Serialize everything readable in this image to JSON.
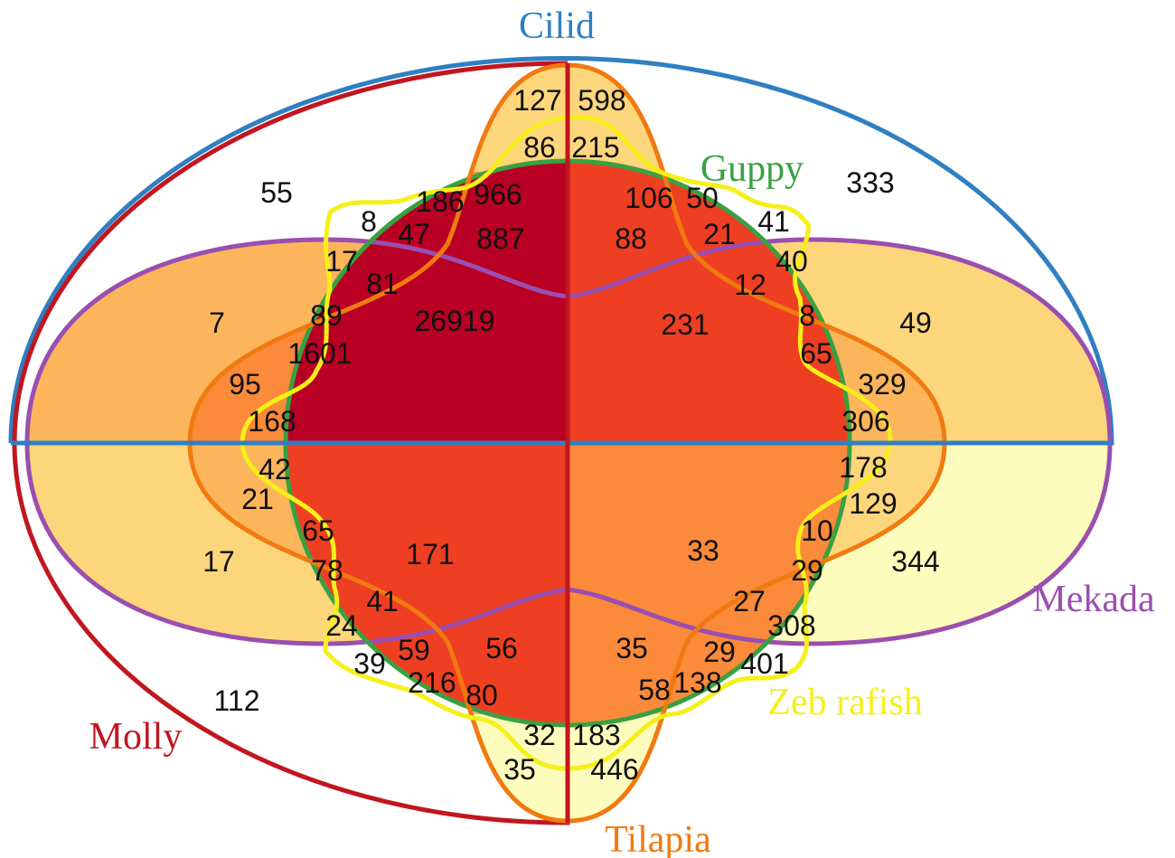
{
  "diagram": {
    "type": "venn",
    "sets": [
      {
        "id": "cilid",
        "label": "Cilid",
        "color": "#2f7fc1"
      },
      {
        "id": "molly",
        "label": "Molly",
        "color": "#c1161f"
      },
      {
        "id": "guppy",
        "label": "Guppy",
        "color": "#3aa042"
      },
      {
        "id": "mekada",
        "label": "Mekada",
        "color": "#9a4fb0"
      },
      {
        "id": "tilapia",
        "label": "Tilapia",
        "color": "#f07a10"
      },
      {
        "id": "zebrafish",
        "label": "Zeb rafish",
        "color": "#f6ef1a"
      }
    ],
    "region_colors": [
      "#b90024",
      "#ef3f22",
      "#fb8a3a",
      "#fcb55a",
      "#fdd67c",
      "#fefcbc"
    ],
    "values": [
      "127",
      "598",
      "86",
      "215",
      "966",
      "186",
      "106",
      "50",
      "41",
      "333",
      "55",
      "8",
      "47",
      "887",
      "88",
      "21",
      "17",
      "40",
      "81",
      "12",
      "89",
      "26919",
      "231",
      "8",
      "7",
      "49",
      "1601",
      "65",
      "95",
      "329",
      "168",
      "306",
      "42",
      "178",
      "21",
      "129",
      "65",
      "10",
      "17",
      "171",
      "33",
      "344",
      "78",
      "29",
      "41",
      "27",
      "24",
      "308",
      "59",
      "56",
      "35",
      "29",
      "39",
      "401",
      "216",
      "80",
      "58",
      "138",
      "112",
      "32",
      "183",
      "35",
      "446"
    ]
  }
}
